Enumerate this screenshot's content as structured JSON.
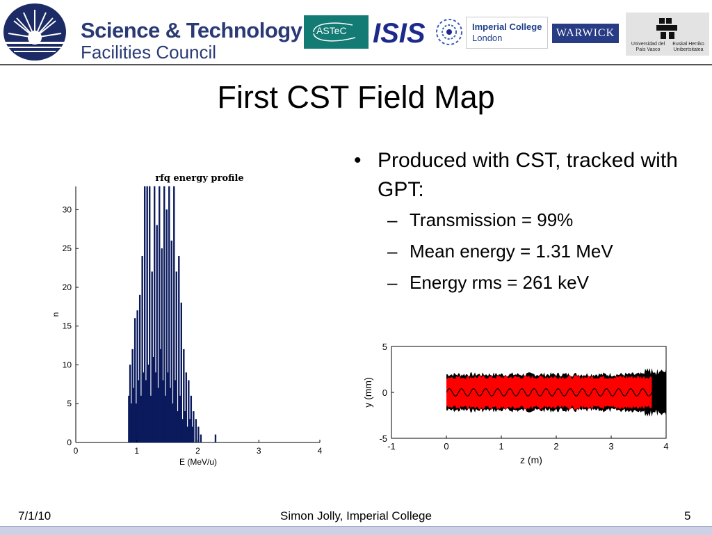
{
  "header": {
    "stfc_line1": "Science & Technology",
    "stfc_line2": "Facilities Council",
    "astec": "ASTeC",
    "isis": "ISIS",
    "imperial_line1": "Imperial College",
    "imperial_line2": "London",
    "warwick": "WARWICK",
    "upv_left": "Universidad del País Vasco",
    "upv_right": "Euskal Herriko Unibertsitatea"
  },
  "slide": {
    "title": "First CST Field Map",
    "bullet": "Produced with CST, tracked with GPT:",
    "sub_bullets": [
      "Transmission = 99%",
      "Mean energy = 1.31 MeV",
      "Energy rms = 261 keV"
    ]
  },
  "footer": {
    "date": "7/1/10",
    "author": "Simon Jolly, Imperial College",
    "page": "5"
  },
  "colors": {
    "brand_blue": "#2a3a74",
    "histogram_bars": "#0b1a5c",
    "particles_red": "#ff0000",
    "particles_black": "#000000"
  },
  "chart_data": [
    {
      "type": "bar",
      "title": "rfq energy profile",
      "xlabel": "E (MeV/u)",
      "ylabel": "n",
      "xlim": [
        0,
        4
      ],
      "ylim": [
        0,
        33
      ],
      "xticks": [
        "0",
        "1",
        "2",
        "3",
        "4"
      ],
      "yticks": [
        "0",
        "5",
        "10",
        "15",
        "20",
        "25",
        "30"
      ],
      "grid": false,
      "bins": [
        {
          "e": 0.87,
          "n": 6
        },
        {
          "e": 0.89,
          "n": 10
        },
        {
          "e": 0.91,
          "n": 5
        },
        {
          "e": 0.93,
          "n": 12
        },
        {
          "e": 0.95,
          "n": 7
        },
        {
          "e": 0.97,
          "n": 16
        },
        {
          "e": 0.99,
          "n": 5
        },
        {
          "e": 1.01,
          "n": 17
        },
        {
          "e": 1.03,
          "n": 8
        },
        {
          "e": 1.05,
          "n": 19
        },
        {
          "e": 1.07,
          "n": 6
        },
        {
          "e": 1.09,
          "n": 24
        },
        {
          "e": 1.11,
          "n": 9
        },
        {
          "e": 1.13,
          "n": 33
        },
        {
          "e": 1.15,
          "n": 8
        },
        {
          "e": 1.17,
          "n": 33
        },
        {
          "e": 1.19,
          "n": 10
        },
        {
          "e": 1.21,
          "n": 33
        },
        {
          "e": 1.23,
          "n": 6
        },
        {
          "e": 1.25,
          "n": 22
        },
        {
          "e": 1.27,
          "n": 11
        },
        {
          "e": 1.29,
          "n": 33
        },
        {
          "e": 1.31,
          "n": 9
        },
        {
          "e": 1.33,
          "n": 28
        },
        {
          "e": 1.35,
          "n": 7
        },
        {
          "e": 1.37,
          "n": 33
        },
        {
          "e": 1.39,
          "n": 12
        },
        {
          "e": 1.41,
          "n": 25
        },
        {
          "e": 1.43,
          "n": 8
        },
        {
          "e": 1.45,
          "n": 33
        },
        {
          "e": 1.47,
          "n": 6
        },
        {
          "e": 1.49,
          "n": 30
        },
        {
          "e": 1.51,
          "n": 9
        },
        {
          "e": 1.53,
          "n": 33
        },
        {
          "e": 1.55,
          "n": 7
        },
        {
          "e": 1.57,
          "n": 26
        },
        {
          "e": 1.59,
          "n": 5
        },
        {
          "e": 1.61,
          "n": 33
        },
        {
          "e": 1.63,
          "n": 8
        },
        {
          "e": 1.65,
          "n": 22
        },
        {
          "e": 1.67,
          "n": 4
        },
        {
          "e": 1.69,
          "n": 24
        },
        {
          "e": 1.71,
          "n": 6
        },
        {
          "e": 1.73,
          "n": 18
        },
        {
          "e": 1.75,
          "n": 3
        },
        {
          "e": 1.77,
          "n": 12
        },
        {
          "e": 1.79,
          "n": 4
        },
        {
          "e": 1.81,
          "n": 9
        },
        {
          "e": 1.83,
          "n": 2
        },
        {
          "e": 1.85,
          "n": 8
        },
        {
          "e": 1.87,
          "n": 3
        },
        {
          "e": 1.89,
          "n": 6
        },
        {
          "e": 1.91,
          "n": 2
        },
        {
          "e": 1.93,
          "n": 4
        },
        {
          "e": 1.97,
          "n": 3
        },
        {
          "e": 2.01,
          "n": 2
        },
        {
          "e": 2.05,
          "n": 1
        },
        {
          "e": 2.29,
          "n": 1
        }
      ]
    },
    {
      "type": "scatter",
      "xlabel": "z (m)",
      "ylabel": "y (mm)",
      "xlim": [
        -1,
        4
      ],
      "ylim": [
        -5,
        5
      ],
      "xticks": [
        "-1",
        "0",
        "1",
        "2",
        "3",
        "4"
      ],
      "yticks": [
        "-5",
        "0",
        "5"
      ],
      "grid": false,
      "series": [
        {
          "color": "#000000",
          "z_range": [
            0,
            4.0
          ],
          "y_envelope_mm": 2.0
        },
        {
          "color": "#ff0000",
          "z_range": [
            0,
            3.75
          ],
          "y_envelope_mm": 1.8
        }
      ],
      "centroid_wave": {
        "amplitude_mm": 0.4,
        "wavelength_m": 0.22
      }
    }
  ]
}
